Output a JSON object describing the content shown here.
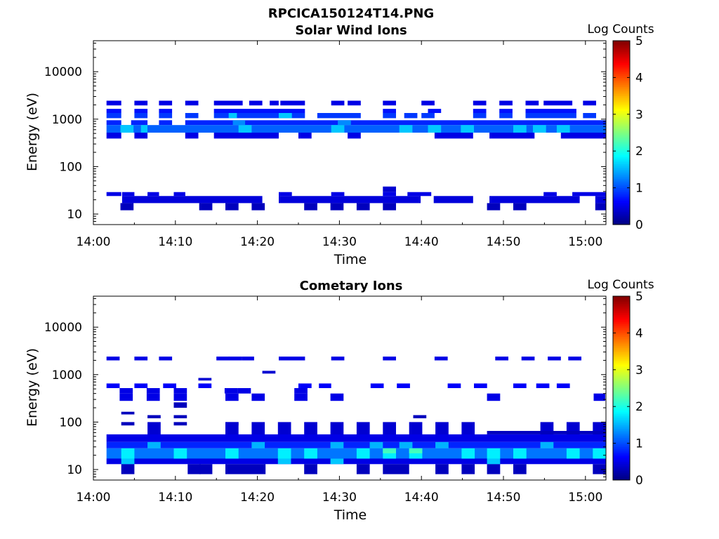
{
  "figure_title": "RPCICA150124T14.PNG",
  "colorbar": {
    "label": "Log Counts",
    "range": [
      0,
      5
    ],
    "ticks": [
      "0",
      "1",
      "2",
      "3",
      "4",
      "5"
    ]
  },
  "chart_data": [
    {
      "type": "heatmap",
      "title": "Solar Wind Ions",
      "xlabel": "Time",
      "ylabel": "Energy (eV)",
      "yscale": "log",
      "ylim": [
        6,
        45000
      ],
      "xlim_minutes": [
        0,
        62.5
      ],
      "x_ticks": [
        "14:00",
        "14:10",
        "14:20",
        "14:30",
        "14:40",
        "14:50",
        "15:00"
      ],
      "y_ticks": [
        "10",
        "100",
        "1000",
        "10000"
      ],
      "bands": [
        {
          "energy": [
            1950,
            2450
          ],
          "value": 0.5,
          "spans": [
            [
              1.6,
              3.4
            ],
            [
              5,
              6.6
            ],
            [
              8,
              9.6
            ],
            [
              11.2,
              12.8
            ],
            [
              14.7,
              18.2
            ],
            [
              19,
              20.6
            ],
            [
              21.5,
              22.6
            ],
            [
              22.8,
              25.8
            ],
            [
              29,
              30.6
            ],
            [
              31,
              32.6
            ],
            [
              35.3,
              36.9
            ],
            [
              40,
              41.6
            ],
            [
              46.3,
              47.9
            ],
            [
              49.5,
              51.1
            ],
            [
              52.7,
              54.3
            ],
            [
              54.9,
              58.4
            ],
            [
              59.7,
              61.3
            ]
          ]
        },
        {
          "energy": [
            1350,
            1650
          ],
          "value": 0.7,
          "spans": [
            [
              1.6,
              3.4
            ],
            [
              5,
              6.6
            ],
            [
              8,
              9.6
            ],
            [
              14.7,
              25.8
            ],
            [
              35.3,
              36.9
            ],
            [
              40.8,
              42.4
            ],
            [
              46.3,
              47.9
            ],
            [
              49.5,
              51.1
            ],
            [
              52.7,
              58.9
            ]
          ]
        },
        {
          "energy": [
            1050,
            1350
          ],
          "value": 0.9,
          "spans": [
            [
              1.6,
              3.4
            ],
            [
              5,
              6.6
            ],
            [
              8,
              9.6
            ],
            [
              11.2,
              12.8
            ],
            [
              14.7,
              25.8
            ],
            [
              27.3,
              32.6
            ],
            [
              35.3,
              36.9
            ],
            [
              37.9,
              39.5
            ],
            [
              40,
              41.6
            ],
            [
              46.3,
              47.9
            ],
            [
              49.5,
              51.1
            ],
            [
              52.7,
              58.9
            ],
            [
              59.7,
              61.3
            ]
          ]
        },
        {
          "energy": [
            750,
            950
          ],
          "value": 0.8,
          "spans": [
            [
              1.6,
              3.4
            ],
            [
              4.6,
              6.6
            ],
            [
              8,
              9.6
            ],
            [
              11.2,
              62.5
            ]
          ]
        },
        {
          "energy": [
            520,
            750
          ],
          "value": 1.1,
          "spans": [
            [
              1.6,
              62.5
            ]
          ]
        },
        {
          "energy": [
            390,
            520
          ],
          "value": 0.5,
          "spans": [
            [
              1.6,
              3.4
            ],
            [
              5,
              6.6
            ],
            [
              11.2,
              12.8
            ],
            [
              14.7,
              22.6
            ],
            [
              25,
              26.6
            ],
            [
              31,
              32.6
            ],
            [
              41.6,
              46.3
            ],
            [
              48.3,
              53.8
            ],
            [
              57,
              62.5
            ]
          ]
        },
        {
          "energy": [
            29,
            38
          ],
          "value": 0.4,
          "spans": [
            [
              35.3,
              36.9
            ]
          ]
        },
        {
          "energy": [
            24,
            29
          ],
          "value": 0.5,
          "spans": [
            [
              1.6,
              3.4
            ],
            [
              3.5,
              5
            ],
            [
              6.6,
              8
            ],
            [
              9.8,
              11.2
            ],
            [
              22.6,
              24.2
            ],
            [
              29,
              30.6
            ],
            [
              35.3,
              36.9
            ],
            [
              38.3,
              41.2
            ],
            [
              54.9,
              56.5
            ],
            [
              58.4,
              62.5
            ]
          ]
        },
        {
          "energy": [
            17,
            24
          ],
          "value": 0.45,
          "spans": [
            [
              3.5,
              20.6
            ],
            [
              22.6,
              39.9
            ],
            [
              41.5,
              46.3
            ],
            [
              48.3,
              59.3
            ],
            [
              61.2,
              62.5
            ]
          ]
        },
        {
          "energy": [
            12,
            17
          ],
          "value": 0.3,
          "spans": [
            [
              3.3,
              4.9
            ],
            [
              12.9,
              14.5
            ],
            [
              16.1,
              17.7
            ],
            [
              19.3,
              20.9
            ],
            [
              25.7,
              27.3
            ],
            [
              28.9,
              30.5
            ],
            [
              32.1,
              33.7
            ],
            [
              35.3,
              36.9
            ],
            [
              48,
              49.6
            ],
            [
              51.2,
              52.8
            ],
            [
              61.2,
              62.5
            ]
          ]
        }
      ],
      "accents": [
        {
          "energy": [
            520,
            750
          ],
          "value": 1.6,
          "spans": [
            [
              3.3,
              4.9
            ],
            [
              5.8,
              6.6
            ],
            [
              17.7,
              19.3
            ],
            [
              29,
              30.6
            ],
            [
              37.3,
              38.9
            ],
            [
              40.8,
              42.4
            ],
            [
              44.8,
              46.4
            ],
            [
              51.2,
              52.8
            ],
            [
              53.6,
              55.2
            ],
            [
              56.5,
              58.1
            ]
          ]
        },
        {
          "energy": [
            1050,
            1350
          ],
          "value": 1.6,
          "spans": [
            [
              16.5,
              17.5
            ],
            [
              22.6,
              24.2
            ]
          ]
        },
        {
          "energy": [
            750,
            950
          ],
          "value": 1.3,
          "spans": [
            [
              17,
              18.5
            ],
            [
              29.8,
              31.4
            ]
          ]
        }
      ]
    },
    {
      "type": "heatmap",
      "title": "Cometary Ions",
      "xlabel": "Time",
      "ylabel": "Energy (eV)",
      "yscale": "log",
      "ylim": [
        6,
        45000
      ],
      "xlim_minutes": [
        0,
        62.5
      ],
      "x_ticks": [
        "14:00",
        "14:10",
        "14:20",
        "14:30",
        "14:40",
        "14:50",
        "15:00"
      ],
      "y_ticks": [
        "10",
        "100",
        "1000",
        "10000"
      ],
      "bands": [
        {
          "energy": [
            2000,
            2400
          ],
          "value": 0.5,
          "spans": [
            [
              1.6,
              3.2
            ],
            [
              5,
              6.6
            ],
            [
              8,
              9.6
            ],
            [
              15,
              16.6
            ],
            [
              16.5,
              18.1
            ],
            [
              18.1,
              19.6
            ],
            [
              22.6,
              25.8
            ],
            [
              29,
              30.6
            ],
            [
              35.3,
              36.9
            ],
            [
              41.6,
              43.2
            ],
            [
              49,
              50.6
            ],
            [
              52.2,
              53.8
            ],
            [
              55.4,
              57
            ],
            [
              57.9,
              59.5
            ]
          ]
        },
        {
          "energy": [
            1050,
            1200
          ],
          "value": 0.4,
          "spans": [
            [
              20.6,
              22.2
            ]
          ]
        },
        {
          "energy": [
            750,
            850
          ],
          "value": 0.4,
          "spans": [
            [
              12.8,
              14.4
            ]
          ]
        },
        {
          "energy": [
            520,
            650
          ],
          "value": 0.6,
          "spans": [
            [
              1.6,
              3.2
            ],
            [
              5,
              6.6
            ],
            [
              8.5,
              10.1
            ],
            [
              12.8,
              14.4
            ],
            [
              25,
              26.6
            ],
            [
              27.5,
              29
            ],
            [
              33.8,
              35.4
            ],
            [
              37,
              38.6
            ],
            [
              43.2,
              44.8
            ],
            [
              46.4,
              48
            ],
            [
              51.2,
              52.8
            ],
            [
              54,
              55.6
            ],
            [
              56.5,
              58.1
            ]
          ]
        },
        {
          "energy": [
            400,
            520
          ],
          "value": 0.5,
          "spans": [
            [
              3.2,
              4.8
            ],
            [
              6.5,
              8.1
            ],
            [
              9.8,
              11.4
            ],
            [
              16,
              17.6
            ],
            [
              17.6,
              19.2
            ],
            [
              24.5,
              26.1
            ]
          ]
        },
        {
          "energy": [
            280,
            400
          ],
          "value": 0.5,
          "spans": [
            [
              3.2,
              4.8
            ],
            [
              6.5,
              8.1
            ],
            [
              9.8,
              11.4
            ],
            [
              16.1,
              17.7
            ],
            [
              19.3,
              20.9
            ],
            [
              24.5,
              26.1
            ],
            [
              28.9,
              30.5
            ],
            [
              48,
              49.6
            ],
            [
              61,
              62.4
            ]
          ]
        },
        {
          "energy": [
            200,
            260
          ],
          "value": 0.3,
          "spans": [
            [
              9.8,
              11.4
            ]
          ]
        },
        {
          "energy": [
            145,
            165
          ],
          "value": 0.3,
          "spans": [
            [
              3.4,
              5
            ]
          ]
        },
        {
          "energy": [
            120,
            140
          ],
          "value": 0.3,
          "spans": [
            [
              6.6,
              8.2
            ],
            [
              9.8,
              11.4
            ],
            [
              39,
              40.6
            ]
          ]
        },
        {
          "energy": [
            85,
            100
          ],
          "value": 0.3,
          "spans": [
            [
              3.4,
              5
            ],
            [
              9.8,
              11.4
            ],
            [
              16.1,
              17.7
            ]
          ]
        },
        {
          "energy": [
            45,
            100
          ],
          "value": 0.4,
          "spans": [
            [
              6.6,
              8.2
            ],
            [
              16.1,
              17.7
            ],
            [
              19.3,
              20.9
            ],
            [
              22.5,
              24.1
            ],
            [
              25.7,
              27.3
            ],
            [
              28.9,
              30.5
            ],
            [
              32.1,
              33.7
            ],
            [
              35.3,
              36.9
            ],
            [
              38.5,
              40.1
            ],
            [
              41.7,
              43.3
            ],
            [
              44.9,
              46.5
            ],
            [
              54.5,
              56.1
            ],
            [
              57.7,
              59.3
            ],
            [
              60.9,
              62.5
            ]
          ]
        },
        {
          "energy": [
            55,
            65
          ],
          "value": 0.3,
          "spans": [
            [
              48,
              62.5
            ]
          ]
        },
        {
          "energy": [
            38,
            55
          ],
          "value": 0.5,
          "spans": [
            [
              1.6,
              62.5
            ]
          ]
        },
        {
          "energy": [
            28,
            38
          ],
          "value": 0.8,
          "spans": [
            [
              1.6,
              62.5
            ]
          ]
        },
        {
          "energy": [
            17,
            28
          ],
          "value": 1.2,
          "spans": [
            [
              1.6,
              62.5
            ]
          ]
        },
        {
          "energy": [
            13,
            17
          ],
          "value": 0.5,
          "spans": [
            [
              1.6,
              62.5
            ]
          ]
        },
        {
          "energy": [
            8,
            13
          ],
          "value": 0.3,
          "spans": [
            [
              3.4,
              5
            ],
            [
              11.5,
              13.1
            ],
            [
              12.9,
              14.5
            ],
            [
              16.1,
              21
            ],
            [
              25.7,
              27.3
            ],
            [
              32.1,
              33.7
            ],
            [
              35.3,
              38.5
            ],
            [
              41.7,
              43.3
            ],
            [
              44.9,
              46.5
            ],
            [
              48,
              49.6
            ],
            [
              51.2,
              52.8
            ],
            [
              60.9,
              62.5
            ]
          ]
        }
      ],
      "accents": [
        {
          "energy": [
            17,
            28
          ],
          "value": 1.8,
          "spans": [
            [
              3.4,
              5
            ],
            [
              9.8,
              11.4
            ],
            [
              16.1,
              17.7
            ],
            [
              22.5,
              24.1
            ],
            [
              25.7,
              27.3
            ],
            [
              32.1,
              33.7
            ],
            [
              35.3,
              36.9
            ],
            [
              38.5,
              40.1
            ],
            [
              44.9,
              46.5
            ],
            [
              48,
              49.6
            ],
            [
              51.2,
              52.8
            ],
            [
              57.7,
              59.3
            ],
            [
              60.9,
              62.5
            ]
          ]
        },
        {
          "energy": [
            28,
            38
          ],
          "value": 1.5,
          "spans": [
            [
              6.6,
              8.2
            ],
            [
              19.3,
              20.9
            ],
            [
              28.9,
              30.5
            ],
            [
              33.7,
              35.3
            ],
            [
              37.3,
              38.9
            ],
            [
              41.7,
              43.3
            ],
            [
              54.5,
              56.1
            ]
          ]
        },
        {
          "energy": [
            13,
            17
          ],
          "value": 1.6,
          "spans": [
            [
              3.4,
              5
            ],
            [
              22.5,
              24.1
            ],
            [
              28.9,
              30.5
            ],
            [
              48,
              49.6
            ]
          ]
        },
        {
          "energy": [
            22,
            28
          ],
          "value": 2.2,
          "spans": [
            [
              35.3,
              36.9
            ],
            [
              38.5,
              40.1
            ]
          ]
        }
      ]
    }
  ]
}
